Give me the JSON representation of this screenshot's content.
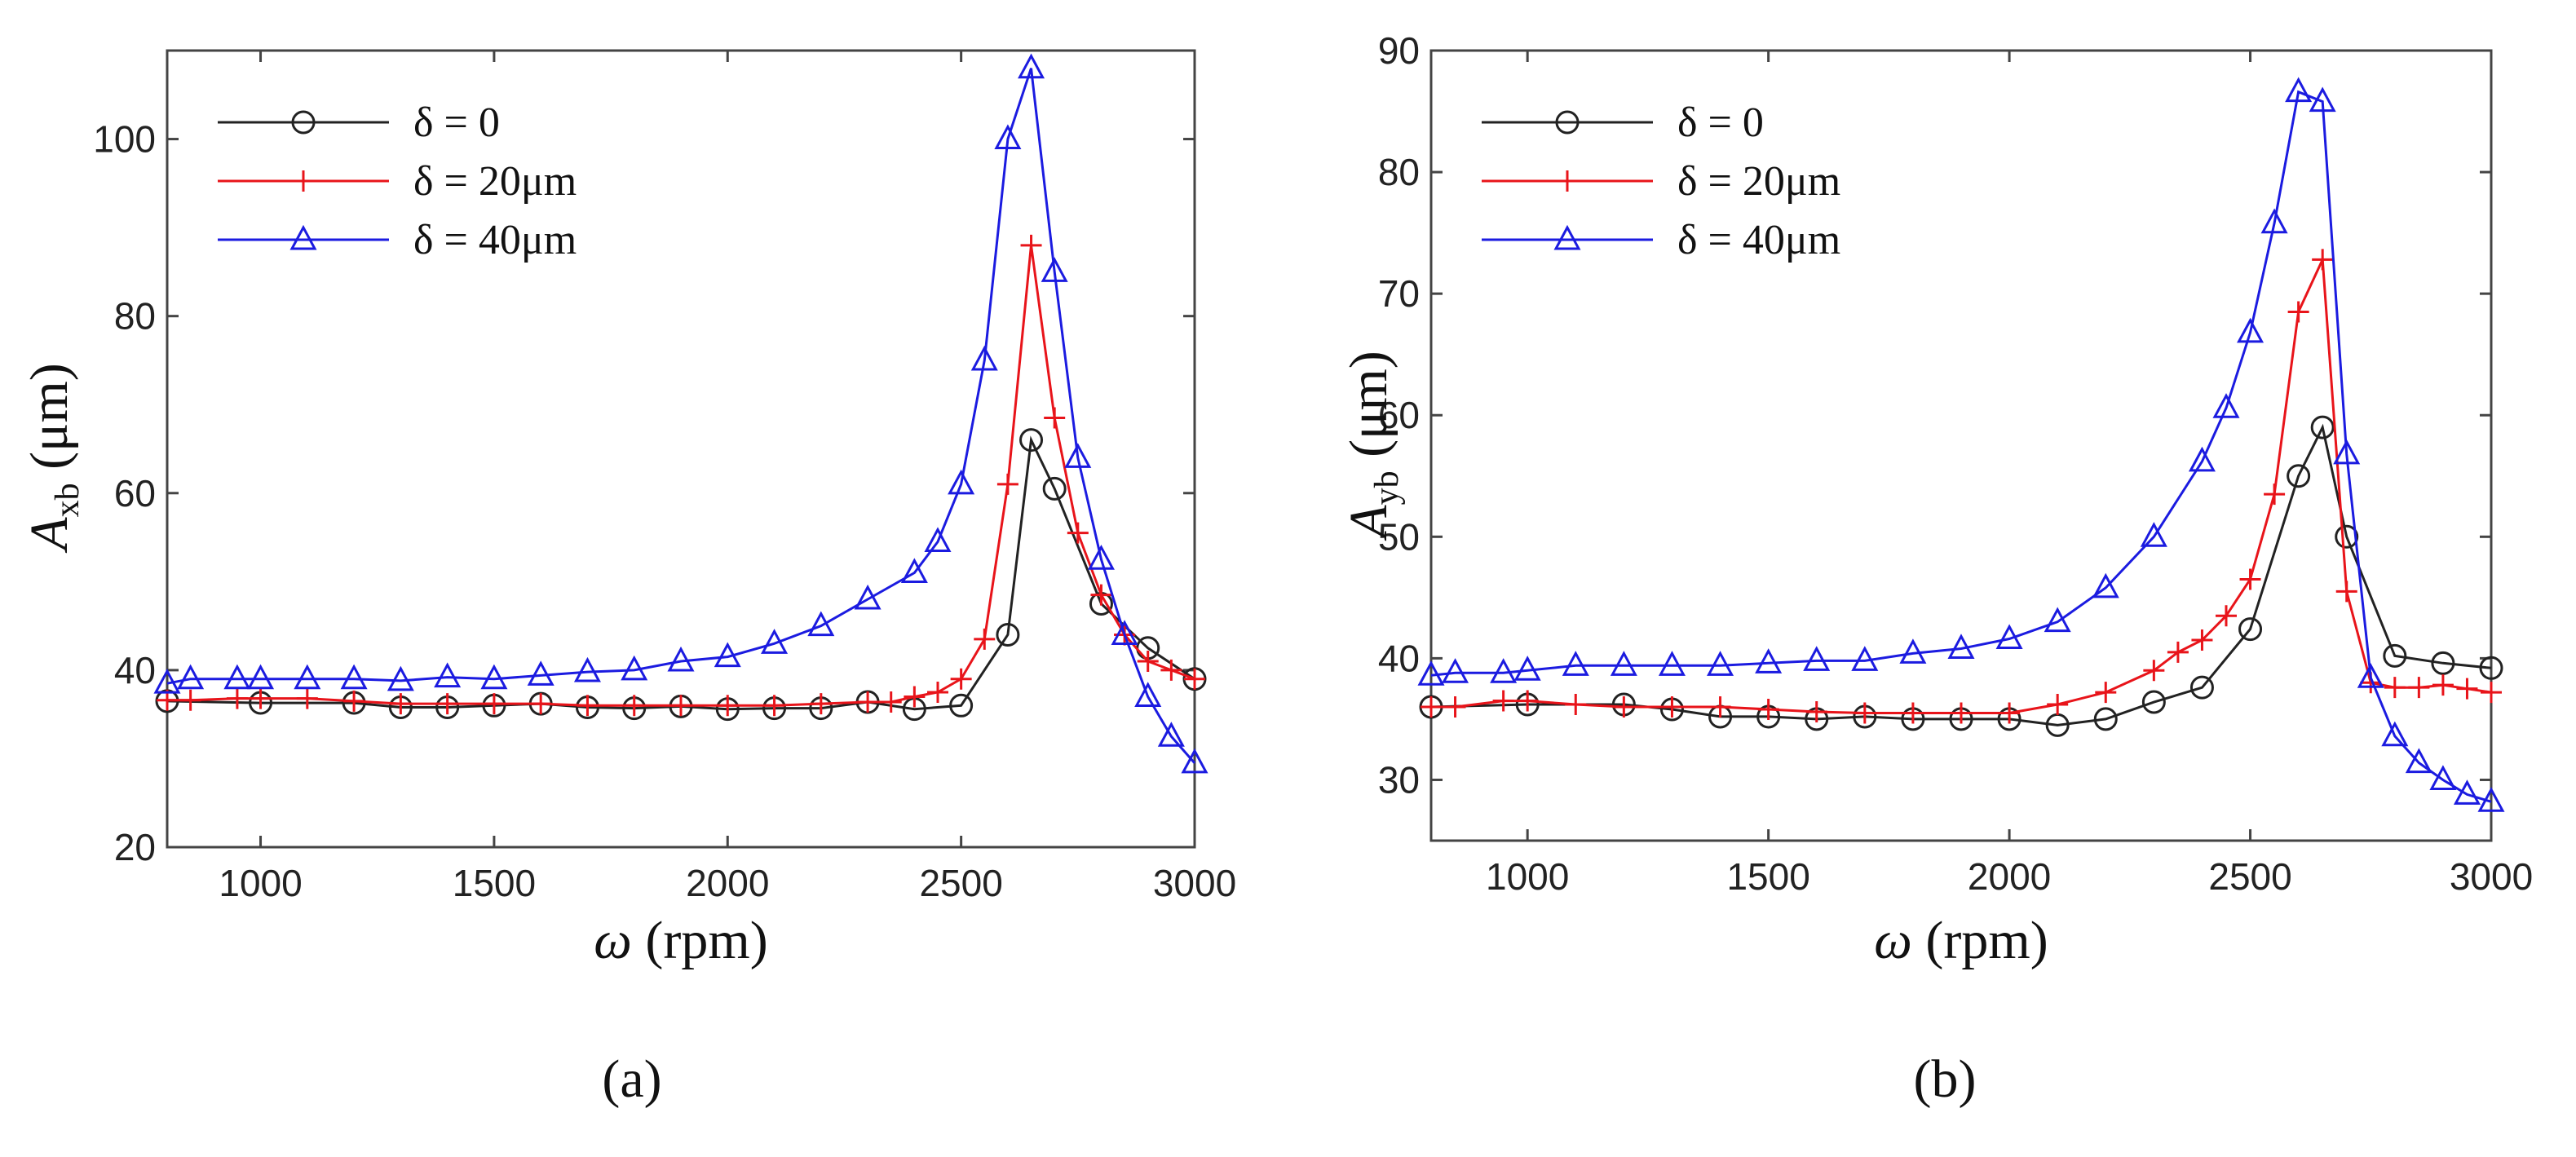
{
  "chart_data": [
    {
      "type": "line",
      "panel_label": "(a)",
      "xlabel": {
        "symbol": "ω",
        "rest": " (rpm)"
      },
      "ylabel": {
        "symbol": "A",
        "sub": "xb",
        "rest": " (μm)"
      },
      "xlim": [
        800,
        3000
      ],
      "ylim": [
        20,
        110
      ],
      "xticks": [
        1000,
        1500,
        2000,
        2500,
        3000
      ],
      "yticks": [
        20,
        40,
        60,
        80,
        100
      ],
      "legend_position": "top-left",
      "series": [
        {
          "name": "δ = 0",
          "color": "#222222",
          "marker": "circle",
          "x": [
            800,
            1000,
            1200,
            1300,
            1400,
            1500,
            1600,
            1700,
            1800,
            1900,
            2000,
            2100,
            2200,
            2300,
            2400,
            2500,
            2600,
            2650,
            2700,
            2800,
            2900,
            3000
          ],
          "y": [
            36.5,
            36.3,
            36.3,
            35.8,
            35.8,
            36.0,
            36.2,
            35.8,
            35.7,
            35.9,
            35.6,
            35.7,
            35.7,
            36.4,
            35.6,
            36.0,
            44,
            66,
            60.5,
            47.5,
            42.5,
            39
          ]
        },
        {
          "name": "δ = 20μm",
          "color": "#e8141a",
          "marker": "plus",
          "x": [
            800,
            850,
            950,
            1000,
            1100,
            1200,
            1300,
            1400,
            1500,
            1600,
            1700,
            1800,
            1900,
            2000,
            2100,
            2200,
            2300,
            2350,
            2400,
            2450,
            2500,
            2550,
            2600,
            2650,
            2700,
            2750,
            2800,
            2850,
            2900,
            2950,
            3000
          ],
          "y": [
            36.6,
            36.6,
            36.8,
            36.8,
            36.8,
            36.5,
            36.2,
            36.2,
            36.2,
            36.2,
            36.0,
            36.0,
            36.0,
            36.0,
            36.0,
            36.2,
            36.4,
            36.4,
            37,
            37.5,
            39,
            43.5,
            61,
            88,
            68.5,
            55.5,
            48.5,
            44,
            41,
            40,
            39
          ]
        },
        {
          "name": "δ = 40μm",
          "color": "#1b1be0",
          "marker": "triangle",
          "x": [
            800,
            850,
            950,
            1000,
            1100,
            1200,
            1300,
            1400,
            1500,
            1600,
            1700,
            1800,
            1900,
            2000,
            2100,
            2200,
            2300,
            2400,
            2450,
            2500,
            2550,
            2600,
            2650,
            2700,
            2750,
            2800,
            2850,
            2900,
            2950,
            3000
          ],
          "y": [
            38.5,
            39,
            39,
            39,
            39,
            39,
            38.8,
            39.2,
            39,
            39.4,
            39.8,
            40,
            41,
            41.5,
            43,
            45,
            48,
            51,
            54.5,
            61,
            75,
            100,
            108,
            85,
            64,
            52.5,
            44,
            37,
            32.5,
            29.5
          ]
        }
      ]
    },
    {
      "type": "line",
      "panel_label": "(b)",
      "xlabel": {
        "symbol": "ω",
        "rest": " (rpm)"
      },
      "ylabel": {
        "symbol": "A",
        "sub": "yb",
        "rest": " (μm)"
      },
      "xlim": [
        800,
        3000
      ],
      "ylim": [
        25,
        90
      ],
      "xticks": [
        1000,
        1500,
        2000,
        2500,
        3000
      ],
      "yticks": [
        30,
        40,
        50,
        60,
        70,
        80,
        90
      ],
      "legend_position": "top-left",
      "series": [
        {
          "name": "δ = 0",
          "color": "#222222",
          "marker": "circle",
          "x": [
            800,
            1000,
            1200,
            1300,
            1400,
            1500,
            1600,
            1700,
            1800,
            1900,
            2000,
            2100,
            2200,
            2300,
            2400,
            2500,
            2600,
            2650,
            2700,
            2800,
            2900,
            3000
          ],
          "y": [
            36,
            36.2,
            36.2,
            35.8,
            35.2,
            35.2,
            35,
            35.2,
            35,
            35,
            35,
            34.5,
            35,
            36.4,
            37.6,
            42.4,
            55,
            59,
            50,
            40.2,
            39.6,
            39.2
          ]
        },
        {
          "name": "δ = 20μm",
          "color": "#e8141a",
          "marker": "plus",
          "x": [
            800,
            850,
            950,
            1000,
            1100,
            1200,
            1300,
            1400,
            1500,
            1600,
            1700,
            1800,
            1900,
            2000,
            2100,
            2200,
            2300,
            2350,
            2400,
            2450,
            2500,
            2550,
            2600,
            2650,
            2700,
            2750,
            2800,
            2850,
            2900,
            2950,
            3000
          ],
          "y": [
            36,
            36,
            36.5,
            36.5,
            36.2,
            36,
            36,
            36,
            35.8,
            35.6,
            35.5,
            35.5,
            35.5,
            35.5,
            36.2,
            37.2,
            39,
            40.5,
            41.5,
            43.5,
            46.5,
            53.5,
            68.5,
            72.8,
            45.5,
            38,
            37.6,
            37.6,
            37.8,
            37.5,
            37.2
          ]
        },
        {
          "name": "δ = 40μm",
          "color": "#1b1be0",
          "marker": "triangle",
          "x": [
            800,
            850,
            950,
            1000,
            1100,
            1200,
            1300,
            1400,
            1500,
            1600,
            1700,
            1800,
            1900,
            2000,
            2100,
            2200,
            2300,
            2400,
            2450,
            2500,
            2550,
            2600,
            2650,
            2700,
            2750,
            2800,
            2850,
            2900,
            2950,
            3000
          ],
          "y": [
            38.6,
            38.8,
            38.8,
            39,
            39.4,
            39.4,
            39.4,
            39.4,
            39.6,
            39.8,
            39.8,
            40.4,
            40.8,
            41.6,
            43,
            45.8,
            50,
            56.2,
            60.6,
            66.8,
            75.8,
            86.6,
            85.8,
            56.8,
            38.4,
            33.6,
            31.4,
            30,
            28.8,
            28.2
          ]
        }
      ]
    }
  ]
}
